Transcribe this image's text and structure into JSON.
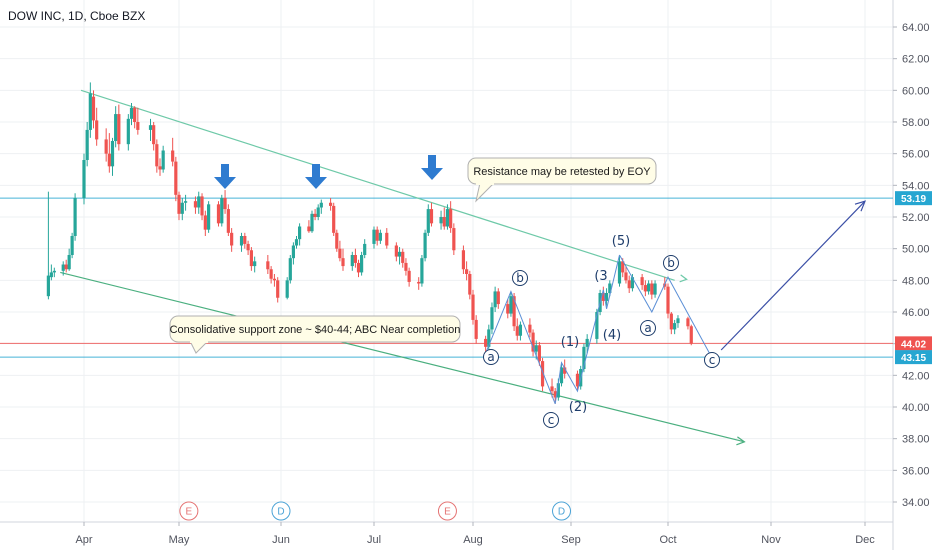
{
  "header": {
    "title": "DOW INC, 1D, Cboe BZX"
  },
  "chart_data": {
    "type": "candlestick",
    "symbol": "DOW INC",
    "interval": "1D",
    "exchange": "Cboe BZX",
    "y_ticks": [
      "64.00",
      "62.00",
      "60.00",
      "58.00",
      "56.00",
      "54.00",
      "52.00",
      "50.00",
      "48.00",
      "46.00",
      "44.00",
      "42.00",
      "40.00",
      "38.00",
      "36.00",
      "34.00"
    ],
    "y_tick_values": [
      64,
      62,
      60,
      58,
      56,
      54,
      52,
      50,
      48,
      46,
      44,
      42,
      40,
      38,
      36,
      34
    ],
    "x_ticks": [
      "Apr",
      "May",
      "Jun",
      "Jul",
      "Aug",
      "Sep",
      "Oct",
      "Nov",
      "Dec"
    ],
    "ylim": [
      32.4,
      65.6
    ],
    "grid": true,
    "price_labels": [
      {
        "text": "53.19",
        "value": 53.19,
        "color": "#26a6d1"
      },
      {
        "text": "44.02",
        "value": 44.02,
        "color": "#ef5350"
      },
      {
        "text": "43.15",
        "value": 43.15,
        "color": "#26a6d1"
      }
    ],
    "horizontal_lines": [
      {
        "value": 53.19,
        "color": "#26a6d1"
      },
      {
        "value": 44.02,
        "color": "#ef5350"
      },
      {
        "value": 43.15,
        "color": "#26a6d1"
      }
    ],
    "channel": {
      "upper": [
        {
          "date": "Mar 31",
          "value": 60.0
        },
        {
          "date": "Oct 3",
          "value": 48.0
        }
      ],
      "lower": [
        {
          "date": "Mar 24",
          "value": 48.5
        },
        {
          "date": "Oct 24",
          "value": 37.8
        }
      ]
    },
    "annotations": [
      {
        "text": "Resistance may be retested by EOY",
        "kind": "callout"
      },
      {
        "text": "Consolidative support zone ~ $40-44; ABC Near completion",
        "kind": "callout"
      }
    ],
    "wave_labels": [
      {
        "text": "a",
        "circled": true
      },
      {
        "text": "b",
        "circled": true
      },
      {
        "text": "c",
        "circled": true
      },
      {
        "text": "(1)",
        "circled": false
      },
      {
        "text": "(2)",
        "circled": false
      },
      {
        "text": "(3",
        "circled": false
      },
      {
        "text": "(4)",
        "circled": false
      },
      {
        "text": "(5)",
        "circled": false
      },
      {
        "text": "a",
        "circled": true
      },
      {
        "text": "b",
        "circled": true
      },
      {
        "text": "c",
        "circled": true
      }
    ],
    "event_badges": [
      {
        "text": "E",
        "date": "May 4",
        "color": "#e57373"
      },
      {
        "text": "D",
        "date": "Jun 1",
        "color": "#4ba3d6"
      },
      {
        "text": "E",
        "date": "Jul 24",
        "color": "#e57373"
      },
      {
        "text": "D",
        "date": "Aug 29",
        "color": "#4ba3d6"
      }
    ],
    "down_arrows": 3,
    "candles": [
      {
        "date": "Mar 20",
        "o": 47.0,
        "h": 53.6,
        "l": 46.8,
        "c": 48.3
      },
      {
        "date": "Mar 21",
        "o": 48.2,
        "h": 49.0,
        "l": 48.0,
        "c": 48.5
      },
      {
        "date": "Mar 22",
        "o": 48.5,
        "h": 48.8,
        "l": 48.2,
        "c": 48.6
      },
      {
        "date": "Mar 25",
        "o": 48.6,
        "h": 49.2,
        "l": 48.3,
        "c": 49.0
      },
      {
        "date": "Mar 26",
        "o": 49.0,
        "h": 49.3,
        "l": 48.5,
        "c": 48.7
      },
      {
        "date": "Mar 27",
        "o": 48.7,
        "h": 50.0,
        "l": 48.6,
        "c": 49.6
      },
      {
        "date": "Mar 28",
        "o": 49.6,
        "h": 51.0,
        "l": 49.4,
        "c": 50.8
      },
      {
        "date": "Mar 29",
        "o": 50.8,
        "h": 53.5,
        "l": 50.5,
        "c": 53.2
      },
      {
        "date": "Apr 1",
        "o": 53.2,
        "h": 56.0,
        "l": 52.8,
        "c": 55.6
      },
      {
        "date": "Apr 2",
        "o": 55.6,
        "h": 58.0,
        "l": 55.2,
        "c": 57.5
      },
      {
        "date": "Apr 3",
        "o": 57.5,
        "h": 60.5,
        "l": 57.0,
        "c": 59.8
      },
      {
        "date": "Apr 4",
        "o": 59.6,
        "h": 60.0,
        "l": 57.6,
        "c": 58.1
      },
      {
        "date": "Apr 5",
        "o": 58.1,
        "h": 58.9,
        "l": 56.5,
        "c": 56.9
      },
      {
        "date": "Apr 8",
        "o": 56.9,
        "h": 57.6,
        "l": 55.5,
        "c": 56.0
      },
      {
        "date": "Apr 9",
        "o": 56.0,
        "h": 57.3,
        "l": 54.8,
        "c": 55.2
      },
      {
        "date": "Apr 10",
        "o": 55.2,
        "h": 57.0,
        "l": 54.6,
        "c": 56.8
      },
      {
        "date": "Apr 11",
        "o": 56.8,
        "h": 59.0,
        "l": 56.4,
        "c": 58.5
      },
      {
        "date": "Apr 12",
        "o": 58.5,
        "h": 59.1,
        "l": 56.2,
        "c": 56.6
      },
      {
        "date": "Apr 15",
        "o": 56.6,
        "h": 58.5,
        "l": 56.2,
        "c": 58.2
      },
      {
        "date": "Apr 16",
        "o": 58.2,
        "h": 59.2,
        "l": 57.8,
        "c": 58.9
      },
      {
        "date": "Apr 17",
        "o": 58.9,
        "h": 59.0,
        "l": 57.6,
        "c": 58.0
      },
      {
        "date": "Apr 18",
        "o": 58.0,
        "h": 58.9,
        "l": 57.2,
        "c": 57.5
      },
      {
        "date": "Apr 22",
        "o": 57.5,
        "h": 58.2,
        "l": 56.8,
        "c": 57.8
      },
      {
        "date": "Apr 23",
        "o": 57.8,
        "h": 58.0,
        "l": 56.2,
        "c": 56.6
      },
      {
        "date": "Apr 24",
        "o": 56.6,
        "h": 56.9,
        "l": 54.8,
        "c": 55.2
      },
      {
        "date": "Apr 25",
        "o": 55.2,
        "h": 55.7,
        "l": 54.6,
        "c": 55.0
      },
      {
        "date": "Apr 26",
        "o": 55.0,
        "h": 56.5,
        "l": 54.8,
        "c": 56.2
      },
      {
        "date": "Apr 29",
        "o": 56.2,
        "h": 57.0,
        "l": 55.2,
        "c": 55.5
      },
      {
        "date": "Apr 30",
        "o": 55.5,
        "h": 55.8,
        "l": 53.0,
        "c": 53.4
      },
      {
        "date": "May 1",
        "o": 53.4,
        "h": 53.6,
        "l": 51.8,
        "c": 52.2
      },
      {
        "date": "May 2",
        "o": 52.2,
        "h": 53.2,
        "l": 51.8,
        "c": 52.9
      },
      {
        "date": "May 3",
        "o": 52.9,
        "h": 53.4,
        "l": 52.4,
        "c": 53.0
      },
      {
        "date": "May 6",
        "o": 53.0,
        "h": 53.3,
        "l": 52.2,
        "c": 52.6
      },
      {
        "date": "May 7",
        "o": 52.6,
        "h": 53.6,
        "l": 52.2,
        "c": 53.3
      },
      {
        "date": "May 8",
        "o": 53.3,
        "h": 53.5,
        "l": 51.8,
        "c": 52.1
      },
      {
        "date": "May 9",
        "o": 52.1,
        "h": 52.4,
        "l": 50.8,
        "c": 51.2
      },
      {
        "date": "May 10",
        "o": 51.2,
        "h": 53.0,
        "l": 51.0,
        "c": 52.8
      },
      {
        "date": "May 13",
        "o": 52.8,
        "h": 53.0,
        "l": 51.4,
        "c": 51.6
      },
      {
        "date": "May 14",
        "o": 51.6,
        "h": 53.4,
        "l": 51.4,
        "c": 53.2
      },
      {
        "date": "May 15",
        "o": 53.2,
        "h": 53.7,
        "l": 52.2,
        "c": 52.5
      },
      {
        "date": "May 16",
        "o": 52.5,
        "h": 52.8,
        "l": 50.8,
        "c": 51.0
      },
      {
        "date": "May 17",
        "o": 51.0,
        "h": 51.3,
        "l": 49.8,
        "c": 50.2
      },
      {
        "date": "May 20",
        "o": 50.2,
        "h": 51.0,
        "l": 49.8,
        "c": 50.8
      },
      {
        "date": "May 21",
        "o": 50.8,
        "h": 51.0,
        "l": 50.0,
        "c": 50.3
      },
      {
        "date": "May 22",
        "o": 50.3,
        "h": 50.5,
        "l": 49.6,
        "c": 49.9
      },
      {
        "date": "May 23",
        "o": 49.9,
        "h": 50.1,
        "l": 48.6,
        "c": 48.9
      },
      {
        "date": "May 24",
        "o": 48.9,
        "h": 49.5,
        "l": 48.5,
        "c": 49.2
      },
      {
        "date": "May 28",
        "o": 49.2,
        "h": 49.6,
        "l": 48.4,
        "c": 48.7
      },
      {
        "date": "May 29",
        "o": 48.7,
        "h": 48.9,
        "l": 47.8,
        "c": 48.1
      },
      {
        "date": "May 30",
        "o": 48.1,
        "h": 48.4,
        "l": 47.6,
        "c": 48.0
      },
      {
        "date": "May 31",
        "o": 48.0,
        "h": 48.2,
        "l": 46.6,
        "c": 46.9
      },
      {
        "date": "Jun 3",
        "o": 46.9,
        "h": 48.2,
        "l": 46.8,
        "c": 48.0
      },
      {
        "date": "Jun 4",
        "o": 48.0,
        "h": 49.6,
        "l": 47.8,
        "c": 49.4
      },
      {
        "date": "Jun 5",
        "o": 49.4,
        "h": 50.4,
        "l": 49.0,
        "c": 50.2
      },
      {
        "date": "Jun 6",
        "o": 50.2,
        "h": 50.8,
        "l": 50.0,
        "c": 50.6
      },
      {
        "date": "Jun 7",
        "o": 50.6,
        "h": 51.6,
        "l": 50.2,
        "c": 51.4
      },
      {
        "date": "Jun 10",
        "o": 51.4,
        "h": 51.8,
        "l": 51.0,
        "c": 51.1
      },
      {
        "date": "Jun 11",
        "o": 51.1,
        "h": 52.4,
        "l": 51.0,
        "c": 52.2
      },
      {
        "date": "Jun 12",
        "o": 52.2,
        "h": 52.5,
        "l": 51.8,
        "c": 52.0
      },
      {
        "date": "Jun 13",
        "o": 52.0,
        "h": 52.8,
        "l": 51.8,
        "c": 52.6
      },
      {
        "date": "Jun 14",
        "o": 52.6,
        "h": 53.1,
        "l": 52.2,
        "c": 52.9
      },
      {
        "date": "Jun 17",
        "o": 52.9,
        "h": 53.2,
        "l": 52.4,
        "c": 52.7
      },
      {
        "date": "Jun 18",
        "o": 52.7,
        "h": 52.9,
        "l": 50.8,
        "c": 51.0
      },
      {
        "date": "Jun 19",
        "o": 51.0,
        "h": 51.2,
        "l": 49.8,
        "c": 50.0
      },
      {
        "date": "Jun 20",
        "o": 50.0,
        "h": 50.5,
        "l": 49.2,
        "c": 49.4
      },
      {
        "date": "Jun 21",
        "o": 49.4,
        "h": 50.0,
        "l": 48.6,
        "c": 48.9
      },
      {
        "date": "Jun 24",
        "o": 48.9,
        "h": 49.8,
        "l": 48.6,
        "c": 49.6
      },
      {
        "date": "Jun 25",
        "o": 49.6,
        "h": 50.0,
        "l": 48.8,
        "c": 49.1
      },
      {
        "date": "Jun 26",
        "o": 49.1,
        "h": 49.3,
        "l": 48.2,
        "c": 48.5
      },
      {
        "date": "Jun 27",
        "o": 48.5,
        "h": 49.8,
        "l": 48.3,
        "c": 49.6
      },
      {
        "date": "Jun 28",
        "o": 49.6,
        "h": 50.6,
        "l": 49.4,
        "c": 50.3
      },
      {
        "date": "Jul 1",
        "o": 50.3,
        "h": 51.4,
        "l": 50.0,
        "c": 51.2
      },
      {
        "date": "Jul 2",
        "o": 51.2,
        "h": 51.4,
        "l": 50.2,
        "c": 50.5
      },
      {
        "date": "Jul 3",
        "o": 50.5,
        "h": 51.2,
        "l": 50.3,
        "c": 51.0
      },
      {
        "date": "Jul 5",
        "o": 51.0,
        "h": 51.3,
        "l": 50.0,
        "c": 50.2
      },
      {
        "date": "Jul 8",
        "o": 50.2,
        "h": 50.4,
        "l": 49.2,
        "c": 49.5
      },
      {
        "date": "Jul 9",
        "o": 49.5,
        "h": 50.1,
        "l": 49.0,
        "c": 49.8
      },
      {
        "date": "Jul 10",
        "o": 49.8,
        "h": 50.0,
        "l": 48.8,
        "c": 49.1
      },
      {
        "date": "Jul 11",
        "o": 49.1,
        "h": 49.4,
        "l": 48.3,
        "c": 48.6
      },
      {
        "date": "Jul 12",
        "o": 48.6,
        "h": 48.8,
        "l": 47.6,
        "c": 47.9
      },
      {
        "date": "Jul 15",
        "o": 47.9,
        "h": 48.2,
        "l": 47.4,
        "c": 47.8
      },
      {
        "date": "Jul 16",
        "o": 47.8,
        "h": 49.6,
        "l": 47.6,
        "c": 49.4
      },
      {
        "date": "Jul 17",
        "o": 49.4,
        "h": 51.2,
        "l": 49.2,
        "c": 51.0
      },
      {
        "date": "Jul 18",
        "o": 51.0,
        "h": 52.8,
        "l": 50.8,
        "c": 52.5
      },
      {
        "date": "Jul 19",
        "o": 52.5,
        "h": 52.9,
        "l": 51.4,
        "c": 51.6
      },
      {
        "date": "Jul 22",
        "o": 51.6,
        "h": 52.4,
        "l": 51.2,
        "c": 52.0
      },
      {
        "date": "Jul 23",
        "o": 52.0,
        "h": 52.6,
        "l": 51.2,
        "c": 51.4
      },
      {
        "date": "Jul 24",
        "o": 51.4,
        "h": 52.8,
        "l": 51.2,
        "c": 52.5
      },
      {
        "date": "Jul 25",
        "o": 52.5,
        "h": 53.0,
        "l": 51.0,
        "c": 51.3
      },
      {
        "date": "Jul 26",
        "o": 51.3,
        "h": 51.6,
        "l": 49.6,
        "c": 49.9
      },
      {
        "date": "Jul 29",
        "o": 49.9,
        "h": 50.2,
        "l": 48.4,
        "c": 48.7
      },
      {
        "date": "Jul 30",
        "o": 48.7,
        "h": 49.2,
        "l": 48.0,
        "c": 48.4
      },
      {
        "date": "Jul 31",
        "o": 48.4,
        "h": 48.6,
        "l": 46.8,
        "c": 47.1
      },
      {
        "date": "Aug 1",
        "o": 47.1,
        "h": 47.4,
        "l": 45.2,
        "c": 45.5
      },
      {
        "date": "Aug 2",
        "o": 45.5,
        "h": 45.8,
        "l": 44.0,
        "c": 44.3
      },
      {
        "date": "Aug 5",
        "o": 44.3,
        "h": 44.5,
        "l": 43.2,
        "c": 43.8
      },
      {
        "date": "Aug 6",
        "o": 43.8,
        "h": 45.2,
        "l": 43.6,
        "c": 44.9
      },
      {
        "date": "Aug 7",
        "o": 44.9,
        "h": 46.6,
        "l": 44.6,
        "c": 46.3
      },
      {
        "date": "Aug 8",
        "o": 46.3,
        "h": 47.6,
        "l": 46.0,
        "c": 47.3
      },
      {
        "date": "Aug 9",
        "o": 47.3,
        "h": 47.5,
        "l": 46.2,
        "c": 46.5
      },
      {
        "date": "Aug 12",
        "o": 46.5,
        "h": 46.8,
        "l": 45.6,
        "c": 45.9
      },
      {
        "date": "Aug 13",
        "o": 45.9,
        "h": 47.3,
        "l": 45.7,
        "c": 47.0
      },
      {
        "date": "Aug 14",
        "o": 47.0,
        "h": 47.2,
        "l": 44.8,
        "c": 45.1
      },
      {
        "date": "Aug 15",
        "o": 45.1,
        "h": 45.6,
        "l": 44.2,
        "c": 44.5
      },
      {
        "date": "Aug 16",
        "o": 44.5,
        "h": 45.4,
        "l": 44.2,
        "c": 45.2
      },
      {
        "date": "Aug 19",
        "o": 45.2,
        "h": 45.6,
        "l": 44.4,
        "c": 44.7
      },
      {
        "date": "Aug 20",
        "o": 44.7,
        "h": 44.9,
        "l": 43.2,
        "c": 43.5
      },
      {
        "date": "Aug 21",
        "o": 43.5,
        "h": 44.2,
        "l": 43.0,
        "c": 43.9
      },
      {
        "date": "Aug 22",
        "o": 43.9,
        "h": 44.1,
        "l": 42.6,
        "c": 42.9
      },
      {
        "date": "Aug 23",
        "o": 42.9,
        "h": 43.1,
        "l": 41.0,
        "c": 41.3
      },
      {
        "date": "Aug 26",
        "o": 41.3,
        "h": 41.8,
        "l": 40.6,
        "c": 41.0
      },
      {
        "date": "Aug 27",
        "o": 41.0,
        "h": 41.2,
        "l": 40.2,
        "c": 40.6
      },
      {
        "date": "Aug 28",
        "o": 40.6,
        "h": 41.8,
        "l": 40.4,
        "c": 41.5
      },
      {
        "date": "Aug 29",
        "o": 41.5,
        "h": 42.8,
        "l": 41.3,
        "c": 42.5
      },
      {
        "date": "Aug 30",
        "o": 42.5,
        "h": 43.0,
        "l": 41.8,
        "c": 42.1
      },
      {
        "date": "Sep 3",
        "o": 42.1,
        "h": 42.3,
        "l": 41.0,
        "c": 41.3
      },
      {
        "date": "Sep 4",
        "o": 41.3,
        "h": 42.6,
        "l": 41.1,
        "c": 42.4
      },
      {
        "date": "Sep 5",
        "o": 42.4,
        "h": 44.0,
        "l": 42.2,
        "c": 43.8
      },
      {
        "date": "Sep 6",
        "o": 43.8,
        "h": 44.6,
        "l": 43.4,
        "c": 44.3
      },
      {
        "date": "Sep 9",
        "o": 44.3,
        "h": 46.2,
        "l": 44.0,
        "c": 46.0
      },
      {
        "date": "Sep 10",
        "o": 46.0,
        "h": 47.4,
        "l": 45.8,
        "c": 47.2
      },
      {
        "date": "Sep 11",
        "o": 47.2,
        "h": 47.6,
        "l": 46.4,
        "c": 46.7
      },
      {
        "date": "Sep 12",
        "o": 46.7,
        "h": 47.5,
        "l": 46.4,
        "c": 47.2
      },
      {
        "date": "Sep 13",
        "o": 47.2,
        "h": 48.0,
        "l": 47.0,
        "c": 47.8
      },
      {
        "date": "Sep 16",
        "o": 47.8,
        "h": 49.6,
        "l": 47.6,
        "c": 49.2
      },
      {
        "date": "Sep 17",
        "o": 49.2,
        "h": 49.4,
        "l": 48.2,
        "c": 48.5
      },
      {
        "date": "Sep 18",
        "o": 48.5,
        "h": 48.9,
        "l": 47.8,
        "c": 48.0
      },
      {
        "date": "Sep 19",
        "o": 48.0,
        "h": 48.3,
        "l": 47.2,
        "c": 47.5
      },
      {
        "date": "Sep 20",
        "o": 47.5,
        "h": 48.4,
        "l": 47.3,
        "c": 48.2
      },
      {
        "date": "Sep 23",
        "o": 48.2,
        "h": 48.4,
        "l": 47.4,
        "c": 47.7
      },
      {
        "date": "Sep 24",
        "o": 47.7,
        "h": 48.0,
        "l": 47.0,
        "c": 47.3
      },
      {
        "date": "Sep 25",
        "o": 47.3,
        "h": 48.0,
        "l": 47.1,
        "c": 47.8
      },
      {
        "date": "Sep 26",
        "o": 47.8,
        "h": 48.0,
        "l": 46.8,
        "c": 47.1
      },
      {
        "date": "Sep 27",
        "o": 47.1,
        "h": 48.0,
        "l": 46.9,
        "c": 47.8
      },
      {
        "date": "Sep 30",
        "o": 47.8,
        "h": 48.2,
        "l": 47.4,
        "c": 47.6
      },
      {
        "date": "Oct 1",
        "o": 47.6,
        "h": 47.8,
        "l": 45.6,
        "c": 45.9
      },
      {
        "date": "Oct 2",
        "o": 45.9,
        "h": 46.0,
        "l": 44.6,
        "c": 44.9
      },
      {
        "date": "Oct 3",
        "o": 44.9,
        "h": 45.5,
        "l": 44.6,
        "c": 45.3
      },
      {
        "date": "Oct 4",
        "o": 45.3,
        "h": 45.8,
        "l": 45.0,
        "c": 45.6
      },
      {
        "date": "Oct 7",
        "o": 45.6,
        "h": 45.7,
        "l": 44.9,
        "c": 45.1
      },
      {
        "date": "Oct 8",
        "o": 45.1,
        "h": 45.2,
        "l": 43.9,
        "c": 44.0
      }
    ]
  }
}
